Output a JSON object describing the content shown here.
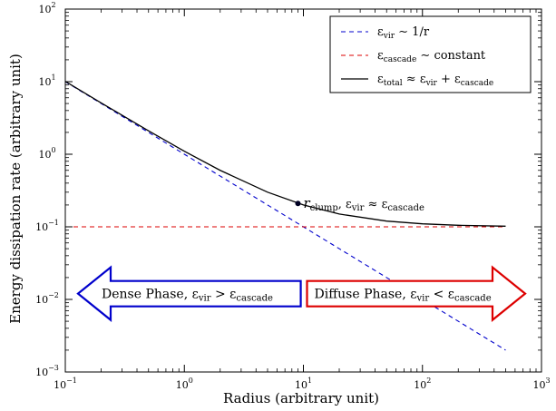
{
  "chart_data": {
    "type": "line",
    "xscale": "log",
    "yscale": "log",
    "xlim": [
      0.1,
      1000
    ],
    "ylim": [
      0.001,
      100
    ],
    "xlabel": "Radius (arbitrary unit)",
    "ylabel": "Energy dissipation rate (arbitrary unit)",
    "x_ticks": [
      {
        "value": 0.1,
        "base": "10",
        "exp": "−1"
      },
      {
        "value": 1,
        "base": "10",
        "exp": "0"
      },
      {
        "value": 10,
        "base": "10",
        "exp": "1"
      },
      {
        "value": 100,
        "base": "10",
        "exp": "2"
      },
      {
        "value": 1000,
        "base": "10",
        "exp": "3"
      }
    ],
    "y_ticks": [
      {
        "value": 0.001,
        "base": "10",
        "exp": "−3"
      },
      {
        "value": 0.01,
        "base": "10",
        "exp": "−2"
      },
      {
        "value": 0.1,
        "base": "10",
        "exp": "−1"
      },
      {
        "value": 1,
        "base": "10",
        "exp": "0"
      },
      {
        "value": 10,
        "base": "10",
        "exp": "1"
      },
      {
        "value": 100,
        "base": "10",
        "exp": "2"
      }
    ],
    "series": [
      {
        "name": "ε_vir ∼ 1/r",
        "color": "#0000cc",
        "dash": "dashed",
        "x": [
          0.1,
          0.2,
          0.5,
          1,
          2,
          5,
          10,
          20,
          50,
          100,
          200,
          500
        ],
        "y": [
          10,
          5,
          2,
          1,
          0.5,
          0.2,
          0.1,
          0.05,
          0.02,
          0.01,
          0.005,
          0.002
        ]
      },
      {
        "name": "ε_cascade ∼ constant",
        "color": "#dd0000",
        "dash": "dashed",
        "x": [
          0.1,
          500
        ],
        "y": [
          0.1,
          0.1
        ]
      },
      {
        "name": "ε_total ≈ ε_vir + ε_cascade",
        "color": "#000000",
        "dash": "solid",
        "x": [
          0.1,
          0.2,
          0.5,
          1,
          2,
          5,
          10,
          20,
          50,
          100,
          200,
          500
        ],
        "y": [
          10.1,
          5.1,
          2.1,
          1.1,
          0.6,
          0.3,
          0.2,
          0.15,
          0.12,
          0.11,
          0.105,
          0.102
        ]
      }
    ],
    "point": {
      "x": 9,
      "y": 0.21,
      "color": "#000022"
    },
    "annotation": {
      "main": "r",
      "sub": "clump",
      "mid": ", ε",
      "sub2": "vir",
      "rel": " ≈ ε",
      "sub3": "cascade"
    },
    "arrows": [
      {
        "direction": "left",
        "color": "#0000cc",
        "x_from": 0.1,
        "x_to": 9.5,
        "y_center": 0.012,
        "text": "Dense Phase, ε",
        "sub1": "vir",
        "rel": " > ε",
        "sub2": "cascade"
      },
      {
        "direction": "right",
        "color": "#dd0000",
        "x_from": 10,
        "x_to": 1000,
        "y_center": 0.012,
        "text": "Diffuse Phase, ε",
        "sub1": "vir",
        "rel": " < ε",
        "sub2": "cascade"
      }
    ],
    "legend_position": "top-right",
    "grid": false
  }
}
